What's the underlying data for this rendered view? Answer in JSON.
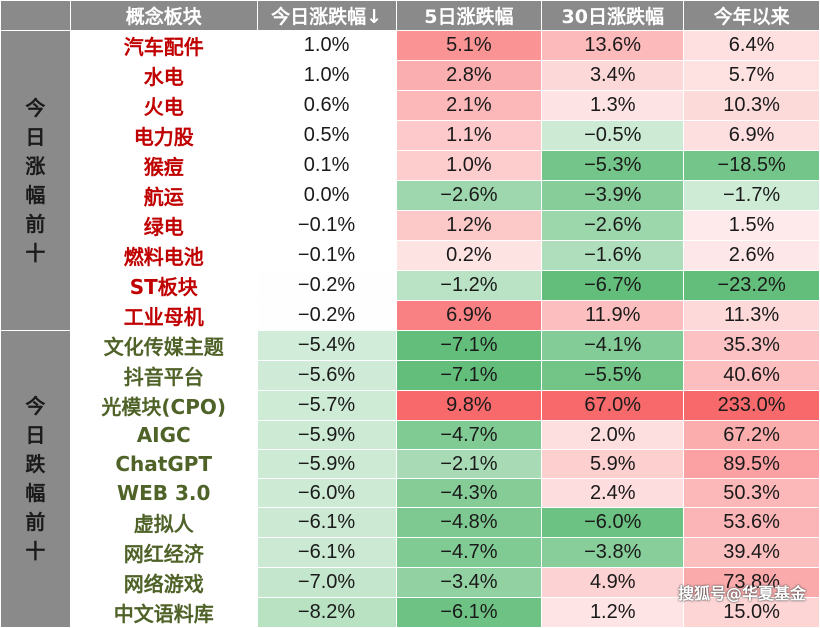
{
  "headers": [
    "概念板块",
    "今日涨跌幅↓",
    "5日涨跌幅",
    "30日涨跌幅",
    "今年以来"
  ],
  "colors": {
    "header_bg": "#8a8a8a",
    "up_name": "#c00000",
    "down_name": "#4f6228",
    "positive_base": "#f8696b",
    "negative_base": "#63be7b"
  },
  "groups": [
    {
      "label": "今日涨幅前十",
      "rows": [
        {
          "name": "汽车配件",
          "today": "1.0%",
          "d5": "5.1%",
          "d30": "13.6%",
          "ytd": "6.4%"
        },
        {
          "name": "水电",
          "today": "1.0%",
          "d5": "2.8%",
          "d30": "3.4%",
          "ytd": "5.7%"
        },
        {
          "name": "火电",
          "today": "0.6%",
          "d5": "2.1%",
          "d30": "1.3%",
          "ytd": "10.3%"
        },
        {
          "name": "电力股",
          "today": "0.5%",
          "d5": "1.1%",
          "d30": "−0.5%",
          "ytd": "6.9%"
        },
        {
          "name": "猴痘",
          "today": "0.1%",
          "d5": "1.0%",
          "d30": "−5.3%",
          "ytd": "−18.5%"
        },
        {
          "name": "航运",
          "today": "0.0%",
          "d5": "−2.6%",
          "d30": "−3.9%",
          "ytd": "−1.7%"
        },
        {
          "name": "绿电",
          "today": "−0.1%",
          "d5": "1.2%",
          "d30": "−2.6%",
          "ytd": "1.5%"
        },
        {
          "name": "燃料电池",
          "today": "−0.1%",
          "d5": "0.2%",
          "d30": "−1.6%",
          "ytd": "2.6%"
        },
        {
          "name": "ST板块",
          "today": "−0.2%",
          "d5": "−1.2%",
          "d30": "−6.7%",
          "ytd": "−23.2%"
        },
        {
          "name": "工业母机",
          "today": "−0.2%",
          "d5": "6.9%",
          "d30": "11.9%",
          "ytd": "11.3%"
        }
      ]
    },
    {
      "label": "今日跌幅前十",
      "rows": [
        {
          "name": "文化传媒主题",
          "today": "−5.4%",
          "d5": "−7.1%",
          "d30": "−4.1%",
          "ytd": "35.3%"
        },
        {
          "name": "抖音平台",
          "today": "−5.6%",
          "d5": "−7.1%",
          "d30": "−5.5%",
          "ytd": "40.6%"
        },
        {
          "name": "光模块(CPO)",
          "today": "−5.7%",
          "d5": "9.8%",
          "d30": "67.0%",
          "ytd": "233.0%"
        },
        {
          "name": "AIGC",
          "today": "−5.9%",
          "d5": "−4.7%",
          "d30": "2.0%",
          "ytd": "67.2%"
        },
        {
          "name": "ChatGPT",
          "today": "−5.9%",
          "d5": "−2.1%",
          "d30": "5.9%",
          "ytd": "89.5%"
        },
        {
          "name": "WEB 3.0",
          "today": "−6.0%",
          "d5": "−4.3%",
          "d30": "2.4%",
          "ytd": "50.3%"
        },
        {
          "name": "虚拟人",
          "today": "−6.1%",
          "d5": "−4.8%",
          "d30": "−6.0%",
          "ytd": "53.6%"
        },
        {
          "name": "网红经济",
          "today": "−6.1%",
          "d5": "−4.7%",
          "d30": "−3.8%",
          "ytd": "39.4%"
        },
        {
          "name": "网络游戏",
          "today": "−7.0%",
          "d5": "−3.4%",
          "d30": "4.9%",
          "ytd": "73.8%"
        },
        {
          "name": "中文语料库",
          "today": "−8.2%",
          "d5": "−6.1%",
          "d30": "1.2%",
          "ytd": "15.0%"
        }
      ]
    }
  ],
  "watermark": "搜狐号@华夏基金"
}
